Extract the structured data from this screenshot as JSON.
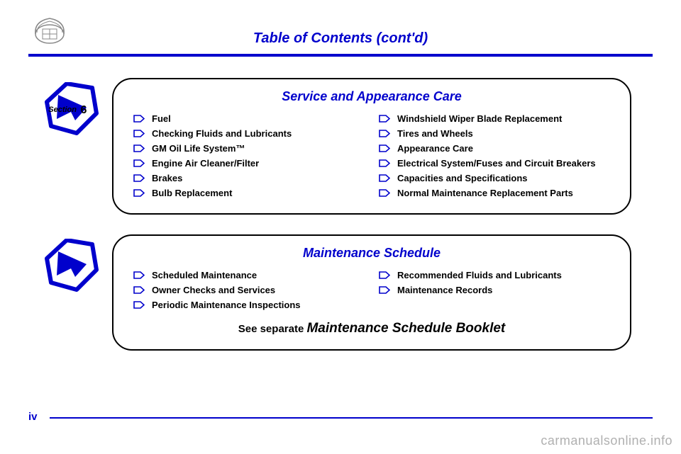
{
  "page": {
    "title": "Table of Contents (cont'd)",
    "page_number": "iv",
    "watermark": "carmanualsonline.info"
  },
  "colors": {
    "accent": "#0000cc",
    "text": "#000000",
    "watermark": "#b0b0b0"
  },
  "section1": {
    "badge_label": "Section",
    "badge_number": "6",
    "title": "Service and Appearance Care",
    "left": [
      "Fuel",
      "Checking Fluids and Lubricants",
      "GM Oil Life System™",
      "Engine Air Cleaner/Filter",
      "Brakes",
      "Bulb Replacement"
    ],
    "right": [
      "Windshield Wiper Blade Replacement",
      "Tires and Wheels",
      "Appearance Care",
      "Electrical System/Fuses and Circuit Breakers",
      "Capacities and Specifications",
      "Normal Maintenance Replacement Parts"
    ]
  },
  "section2": {
    "title": "Maintenance Schedule",
    "left": [
      "Scheduled Maintenance",
      "Owner Checks and Services",
      "Periodic Maintenance Inspections"
    ],
    "right": [
      "Recommended Fluids and Lubricants",
      "Maintenance Records"
    ],
    "footnote_prefix": "See separate ",
    "footnote_main": "Maintenance Schedule Booklet"
  }
}
